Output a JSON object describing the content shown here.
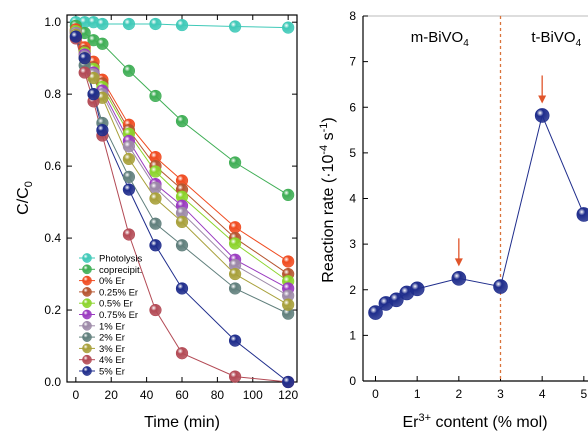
{
  "chart_data": [
    {
      "type": "scatter",
      "xlabel": "Time (min)",
      "ylabel": {
        "main": "C/C",
        "sub": "0"
      },
      "xlim": [
        -5,
        125
      ],
      "ylim": [
        0,
        1.02
      ],
      "x_ticks": [
        0,
        20,
        40,
        60,
        80,
        100,
        120
      ],
      "y_ticks": [
        0.0,
        0.2,
        0.4,
        0.6,
        0.8,
        1.0
      ],
      "x_tick_labels": [
        "0",
        "20",
        "40",
        "60",
        "80",
        "100",
        "120"
      ],
      "y_tick_labels": [
        "0.0",
        "0.2",
        "0.4",
        "0.6",
        "0.8",
        "1.0"
      ],
      "legend_position": "bottom-left",
      "series": [
        {
          "name": "Photolysis",
          "color": "#3fc9b8",
          "x": [
            0,
            5,
            10,
            15,
            30,
            45,
            60,
            90,
            120
          ],
          "y": [
            1.0,
            1.0,
            1.0,
            0.995,
            0.995,
            0.995,
            0.992,
            0.988,
            0.985
          ]
        },
        {
          "name": "coprecipit.",
          "color": "#3fae55",
          "x": [
            0,
            5,
            10,
            15,
            30,
            45,
            60,
            90,
            120
          ],
          "y": [
            0.99,
            0.97,
            0.95,
            0.94,
            0.865,
            0.795,
            0.725,
            0.61,
            0.52
          ]
        },
        {
          "name": "0% Er",
          "color": "#f04b20",
          "x": [
            0,
            5,
            10,
            15,
            30,
            45,
            60,
            90,
            120
          ],
          "y": [
            0.98,
            0.93,
            0.89,
            0.84,
            0.715,
            0.625,
            0.56,
            0.43,
            0.335
          ]
        },
        {
          "name": "0.25% Er",
          "color": "#b5552f",
          "x": [
            0,
            5,
            10,
            15,
            30,
            45,
            60,
            90,
            120
          ],
          "y": [
            0.975,
            0.92,
            0.875,
            0.83,
            0.7,
            0.6,
            0.535,
            0.4,
            0.3
          ]
        },
        {
          "name": "0.5% Er",
          "color": "#8cd42c",
          "x": [
            0,
            5,
            10,
            15,
            30,
            45,
            60,
            90,
            120
          ],
          "y": [
            0.975,
            0.915,
            0.87,
            0.82,
            0.69,
            0.585,
            0.515,
            0.385,
            0.28
          ]
        },
        {
          "name": "0.75% Er",
          "color": "#9a3bc0",
          "x": [
            0,
            5,
            10,
            15,
            30,
            45,
            60,
            90,
            120
          ],
          "y": [
            0.97,
            0.91,
            0.86,
            0.81,
            0.67,
            0.55,
            0.49,
            0.34,
            0.26
          ]
        },
        {
          "name": "1% Er",
          "color": "#9d8aa8",
          "x": [
            0,
            5,
            10,
            15,
            30,
            45,
            60,
            90,
            120
          ],
          "y": [
            0.97,
            0.905,
            0.855,
            0.8,
            0.655,
            0.54,
            0.47,
            0.325,
            0.24
          ]
        },
        {
          "name": "2% Er",
          "color": "#607f7c",
          "x": [
            0,
            5,
            10,
            15,
            30,
            45,
            60,
            90,
            120
          ],
          "y": [
            0.96,
            0.88,
            0.8,
            0.72,
            0.57,
            0.44,
            0.38,
            0.26,
            0.19
          ]
        },
        {
          "name": "3% Er",
          "color": "#a8a03a",
          "x": [
            0,
            5,
            10,
            15,
            30,
            45,
            60,
            90,
            120
          ],
          "y": [
            0.965,
            0.9,
            0.845,
            0.79,
            0.62,
            0.51,
            0.445,
            0.3,
            0.215
          ]
        },
        {
          "name": "4% Er",
          "color": "#b34a55",
          "x": [
            0,
            5,
            10,
            15,
            30,
            45,
            60,
            90,
            120
          ],
          "y": [
            0.955,
            0.86,
            0.78,
            0.685,
            0.41,
            0.2,
            0.08,
            0.015,
            0.0
          ]
        },
        {
          "name": "5% Er",
          "color": "#1f2d8c",
          "x": [
            0,
            5,
            10,
            15,
            30,
            45,
            60,
            90,
            120
          ],
          "y": [
            0.96,
            0.9,
            0.8,
            0.7,
            0.535,
            0.38,
            0.26,
            0.115,
            0.0
          ]
        }
      ]
    },
    {
      "type": "line",
      "xlabel": {
        "pre": "Er",
        "sup": "3+",
        "post": " content (% mol)"
      },
      "ylabel": {
        "pre": "Reaction rate (·10",
        "sup": "-4",
        "mid": " s",
        "sup2": "-1",
        "post": ")"
      },
      "xlim": [
        -0.3,
        5.1
      ],
      "ylim": [
        0,
        8
      ],
      "x_ticks": [
        0,
        1,
        2,
        3,
        4,
        5
      ],
      "y_ticks": [
        0,
        1,
        2,
        3,
        4,
        5,
        6,
        7,
        8
      ],
      "x_tick_labels": [
        "0",
        "1",
        "2",
        "3",
        "4",
        "5"
      ],
      "y_tick_labels": [
        "0",
        "1",
        "2",
        "3",
        "4",
        "5",
        "6",
        "7",
        "8"
      ],
      "phase_boundary_x": 3,
      "phase_labels": [
        {
          "base": "m-BiVO",
          "sub": "4"
        },
        {
          "base": "t-BiVO",
          "sub": "4"
        }
      ],
      "arrows_at_x": [
        2,
        4
      ],
      "series": [
        {
          "color": "#1f2d8c",
          "x": [
            0,
            0.25,
            0.5,
            0.75,
            1,
            2,
            3,
            4,
            5
          ],
          "y": [
            1.5,
            1.7,
            1.78,
            1.93,
            2.02,
            2.25,
            2.07,
            5.82,
            3.65
          ]
        }
      ]
    }
  ]
}
